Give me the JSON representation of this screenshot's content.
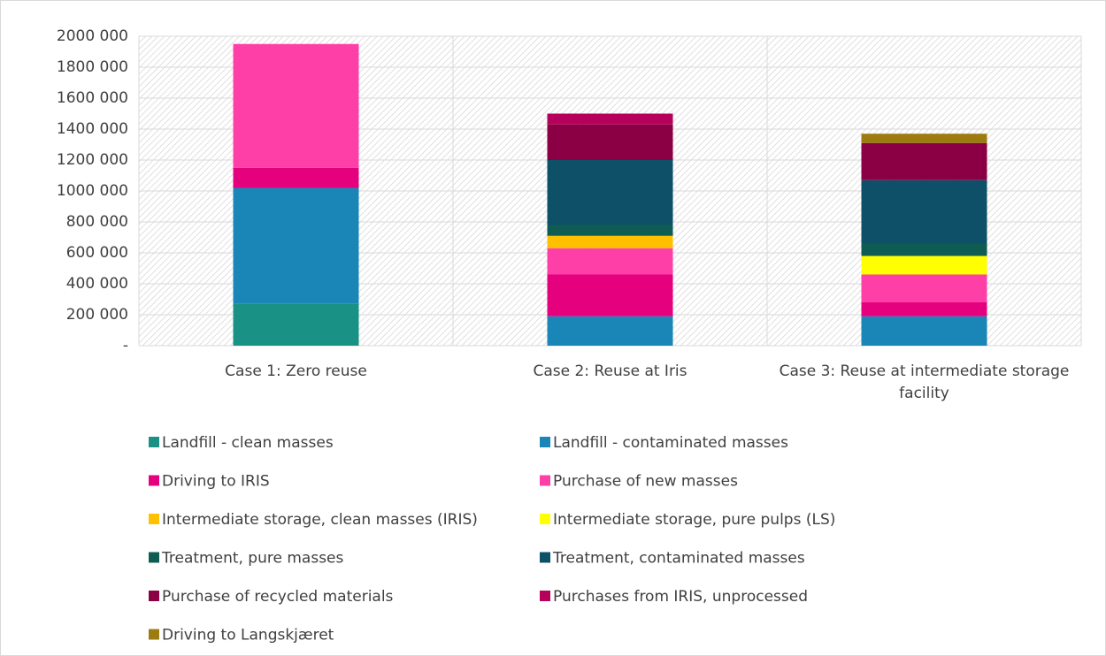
{
  "chart_data": {
    "type": "stacked_bar",
    "categories": [
      "Case 1: Zero reuse",
      "Case 2: Reuse at Iris",
      "Case 3: Reuse at intermediate storage facility"
    ],
    "series": [
      {
        "name": "Landfill - clean masses",
        "color": "#1a9185",
        "values": [
          270000,
          null,
          null
        ]
      },
      {
        "name": "Landfill - contaminated masses",
        "color": "#1a86b8",
        "values": [
          750000,
          190000,
          190000
        ]
      },
      {
        "name": "Driving to IRIS",
        "color": "#e5007d",
        "values": [
          130000,
          270000,
          90000
        ]
      },
      {
        "name": "Purchase of new masses",
        "color": "#ff3fa8",
        "values": [
          800000,
          170000,
          180000
        ]
      },
      {
        "name": "Intermediate storage, clean masses (IRIS)",
        "color": "#ffc000",
        "values": [
          null,
          80000,
          null
        ]
      },
      {
        "name": "Intermediate storage, pure pulps (LS)",
        "color": "#ffff00",
        "values": [
          null,
          null,
          120000
        ]
      },
      {
        "name": "Treatment, pure masses",
        "color": "#0f5c52",
        "values": [
          null,
          70000,
          80000
        ]
      },
      {
        "name": "Treatment, contaminated masses",
        "color": "#0d5068",
        "values": [
          null,
          420000,
          410000
        ]
      },
      {
        "name": "Purchase of recycled materials",
        "color": "#8b0045",
        "values": [
          null,
          230000,
          240000
        ]
      },
      {
        "name": "Purchases from IRIS, unprocessed",
        "color": "#b5005c",
        "values": [
          null,
          70000,
          null
        ]
      },
      {
        "name": "Driving to Langskjæret",
        "color": "#9c7b10",
        "values": [
          null,
          null,
          60000
        ]
      }
    ],
    "ylim": [
      0,
      2000000
    ],
    "yticks": [
      {
        "value": 0,
        "label": "-"
      },
      {
        "value": 200000,
        "label": "200 000"
      },
      {
        "value": 400000,
        "label": "400 000"
      },
      {
        "value": 600000,
        "label": "600 000"
      },
      {
        "value": 800000,
        "label": "800 000"
      },
      {
        "value": 1000000,
        "label": "1000 000"
      },
      {
        "value": 1200000,
        "label": "1200 000"
      },
      {
        "value": 1400000,
        "label": "1400 000"
      },
      {
        "value": 1600000,
        "label": "1600 000"
      },
      {
        "value": 1800000,
        "label": "1800 000"
      },
      {
        "value": 2000000,
        "label": "2000 000"
      }
    ],
    "grid": true
  }
}
